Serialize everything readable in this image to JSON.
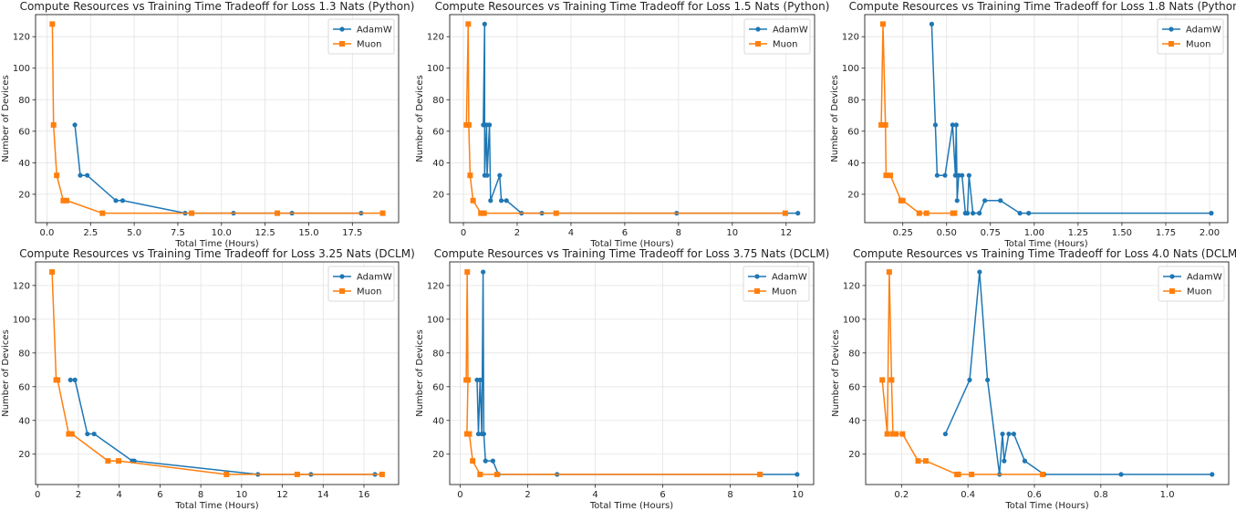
{
  "colors": {
    "AdamW": "#1f77b4",
    "Muon": "#ff7f0e"
  },
  "chart_data": [
    {
      "type": "line",
      "title": "Compute Resources vs Training Time Tradeoff for Loss 1.3 Nats (Python)",
      "xlabel": "Total Time (Hours)",
      "ylabel": "Number of Devices",
      "xlim": [
        -0.65,
        20.15
      ],
      "ylim": [
        2,
        134
      ],
      "xticks": [
        0,
        2.5,
        5,
        7.5,
        10,
        12.5,
        15,
        17.5
      ],
      "xtick_labels": [
        "0.0",
        "2.5",
        "5.0",
        "7.5",
        "10.0",
        "12.5",
        "15.0",
        "17.5"
      ],
      "yticks": [
        20,
        40,
        60,
        80,
        100,
        120
      ],
      "grid": true,
      "legend": "top-right",
      "series": [
        {
          "name": "AdamW",
          "marker": "circle",
          "x": [
            1.6,
            1.91,
            2.31,
            3.95,
            4.34,
            7.92,
            10.69,
            14.04,
            18.0
          ],
          "y": [
            64,
            32,
            32,
            16,
            16,
            8,
            8,
            8,
            8
          ]
        },
        {
          "name": "Muon",
          "marker": "square",
          "x": [
            0.31,
            0.38,
            0.56,
            0.94,
            1.13,
            3.18,
            8.29,
            13.2,
            19.24
          ],
          "y": [
            128,
            64,
            32,
            16,
            16,
            8,
            8,
            8,
            8
          ]
        }
      ]
    },
    {
      "type": "line",
      "title": "Compute Resources vs Training Time Tradeoff for Loss 1.5 Nats (Python)",
      "xlabel": "Total Time (Hours)",
      "ylabel": "Number of Devices",
      "xlim": [
        -0.51,
        13.06
      ],
      "ylim": [
        2,
        134
      ],
      "xticks": [
        0,
        2,
        4,
        6,
        8,
        10,
        12
      ],
      "xtick_labels": [
        "0",
        "2",
        "4",
        "6",
        "8",
        "10",
        "12"
      ],
      "yticks": [
        20,
        40,
        60,
        80,
        100,
        120
      ],
      "grid": true,
      "legend": "top-right",
      "series": [
        {
          "name": "AdamW",
          "marker": "circle",
          "x": [
            0.74,
            0.79,
            0.79,
            0.86,
            0.88,
            0.97,
            1.01,
            1.35,
            1.41,
            1.6,
            2.16,
            2.92,
            7.93,
            12.44
          ],
          "y": [
            64,
            128,
            32,
            64,
            32,
            64,
            16,
            32,
            16,
            16,
            8,
            8,
            8,
            8
          ]
        },
        {
          "name": "Muon",
          "marker": "square",
          "x": [
            0.11,
            0.18,
            0.2,
            0.25,
            0.36,
            0.65,
            0.77,
            3.45,
            11.97
          ],
          "y": [
            64,
            128,
            64,
            32,
            16,
            8,
            8,
            8,
            8
          ]
        }
      ]
    },
    {
      "type": "line",
      "title": "Compute Resources vs Training Time Tradeoff for Loss 1.8 Nats (Python)",
      "xlabel": "Total Time (Hours)",
      "ylabel": "Number of Devices",
      "xlim": [
        0.033,
        2.104
      ],
      "ylim": [
        2,
        134
      ],
      "xticks": [
        0.25,
        0.5,
        0.75,
        1.0,
        1.25,
        1.5,
        1.75,
        2.0
      ],
      "xtick_labels": [
        "0.25",
        "0.50",
        "0.75",
        "1.00",
        "1.25",
        "1.50",
        "1.75",
        "2.00"
      ],
      "yticks": [
        20,
        40,
        60,
        80,
        100,
        120
      ],
      "grid": true,
      "legend": "top-right",
      "series": [
        {
          "name": "AdamW",
          "marker": "circle",
          "x": [
            0.415,
            0.436,
            0.446,
            0.491,
            0.534,
            0.55,
            0.555,
            0.56,
            0.569,
            0.588,
            0.607,
            0.619,
            0.628,
            0.65,
            0.687,
            0.718,
            0.807,
            0.918,
            0.968,
            2.01
          ],
          "y": [
            128,
            64,
            32,
            32,
            64,
            32,
            64,
            16,
            32,
            32,
            8,
            8,
            32,
            8,
            8,
            16,
            16,
            8,
            8,
            8
          ]
        },
        {
          "name": "Muon",
          "marker": "square",
          "x": [
            0.127,
            0.137,
            0.151,
            0.155,
            0.179,
            0.24,
            0.25,
            0.344,
            0.385,
            0.536,
            0.545
          ],
          "y": [
            64,
            128,
            64,
            32,
            32,
            16,
            16,
            8,
            8,
            8,
            8
          ]
        }
      ]
    },
    {
      "type": "line",
      "title": "Compute Resources vs Training Time Tradeoff for Loss 3.25 Nats (DCLM)",
      "xlabel": "Total Time (Hours)",
      "ylabel": "Number of Devices",
      "xlim": [
        -0.1,
        17.7
      ],
      "ylim": [
        2,
        134
      ],
      "xticks": [
        0,
        2,
        4,
        6,
        8,
        10,
        12,
        14,
        16
      ],
      "xtick_labels": [
        "0",
        "2",
        "4",
        "6",
        "8",
        "10",
        "12",
        "14",
        "16"
      ],
      "yticks": [
        20,
        40,
        60,
        80,
        100,
        120
      ],
      "grid": true,
      "legend": "top-right",
      "series": [
        {
          "name": "AdamW",
          "marker": "circle",
          "x": [
            1.61,
            1.83,
            2.44,
            2.77,
            4.64,
            4.74,
            10.8,
            13.4,
            16.54
          ],
          "y": [
            64,
            64,
            32,
            32,
            16,
            16,
            8,
            8,
            8
          ]
        },
        {
          "name": "Muon",
          "marker": "square",
          "x": [
            0.71,
            0.91,
            0.98,
            1.53,
            1.68,
            3.45,
            3.97,
            9.26,
            12.73,
            16.89
          ],
          "y": [
            128,
            64,
            64,
            32,
            32,
            16,
            16,
            8,
            8,
            8
          ]
        }
      ]
    },
    {
      "type": "line",
      "title": "Compute Resources vs Training Time Tradeoff for Loss 3.75 Nats (DCLM)",
      "xlabel": "Total Time (Hours)",
      "ylabel": "Number of Devices",
      "xlim": [
        -0.31,
        10.47
      ],
      "ylim": [
        2,
        134
      ],
      "xticks": [
        0,
        2,
        4,
        6,
        8,
        10
      ],
      "xtick_labels": [
        "0",
        "2",
        "4",
        "6",
        "8",
        "10"
      ],
      "yticks": [
        20,
        40,
        60,
        80,
        100,
        120
      ],
      "grid": true,
      "legend": "top-right",
      "series": [
        {
          "name": "AdamW",
          "marker": "circle",
          "x": [
            0.5,
            0.54,
            0.59,
            0.64,
            0.68,
            0.7,
            0.75,
            0.97,
            1.13,
            2.87,
            9.98
          ],
          "y": [
            64,
            32,
            64,
            32,
            128,
            32,
            16,
            16,
            8,
            8,
            8
          ]
        },
        {
          "name": "Muon",
          "marker": "square",
          "x": [
            0.18,
            0.21,
            0.23,
            0.2,
            0.27,
            0.37,
            0.59,
            1.09,
            8.88
          ],
          "y": [
            64,
            128,
            64,
            32,
            32,
            16,
            8,
            8,
            8
          ]
        }
      ]
    },
    {
      "type": "line",
      "title": "Compute Resources vs Training Time Tradeoff for Loss 4.0 Nats (DCLM)",
      "xlabel": "Total Time (Hours)",
      "ylabel": "Number of Devices",
      "xlim": [
        0.092,
        1.185
      ],
      "ylim": [
        2,
        134
      ],
      "xticks": [
        0.2,
        0.4,
        0.6,
        0.8,
        1.0
      ],
      "xtick_labels": [
        "0.2",
        "0.4",
        "0.6",
        "0.8",
        "1.0"
      ],
      "yticks": [
        20,
        40,
        60,
        80,
        100,
        120
      ],
      "grid": true,
      "legend": "top-right",
      "series": [
        {
          "name": "AdamW",
          "marker": "circle",
          "x": [
            0.332,
            0.405,
            0.435,
            0.459,
            0.495,
            0.504,
            0.509,
            0.523,
            0.538,
            0.571,
            0.629,
            0.861,
            1.135
          ],
          "y": [
            32,
            64,
            128,
            64,
            8,
            32,
            16,
            32,
            32,
            16,
            8,
            8,
            8
          ]
        },
        {
          "name": "Muon",
          "marker": "square",
          "x": [
            0.142,
            0.157,
            0.163,
            0.17,
            0.174,
            0.183,
            0.203,
            0.25,
            0.273,
            0.367,
            0.371,
            0.411,
            0.625
          ],
          "y": [
            64,
            32,
            128,
            64,
            32,
            32,
            32,
            16,
            16,
            8,
            8,
            8,
            8
          ]
        }
      ]
    }
  ]
}
